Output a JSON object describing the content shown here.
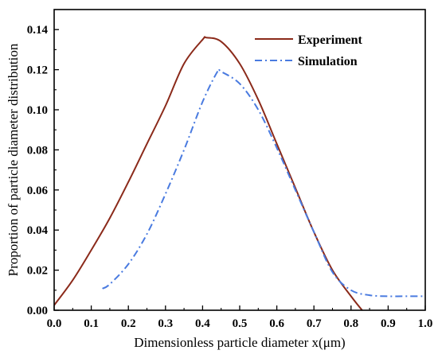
{
  "chart_data": {
    "type": "line",
    "xlabel": "Dimensionless particle diameter x(μm)",
    "ylabel": "Proportion of particle diameter distribution",
    "xlim": [
      0.0,
      1.0
    ],
    "ylim": [
      0.0,
      0.15
    ],
    "xticks": [
      "0.0",
      "0.1",
      "0.2",
      "0.3",
      "0.4",
      "0.5",
      "0.6",
      "0.7",
      "0.8",
      "0.9",
      "1.0"
    ],
    "yticks": [
      "0.00",
      "0.02",
      "0.04",
      "0.06",
      "0.08",
      "0.10",
      "0.12",
      "0.14"
    ],
    "legend_position": "top-right",
    "grid": false,
    "series": [
      {
        "name": "Experiment",
        "color": "#8B2A1A",
        "style": "solid",
        "x": [
          0.0,
          0.05,
          0.1,
          0.15,
          0.2,
          0.25,
          0.3,
          0.35,
          0.4,
          0.41,
          0.45,
          0.5,
          0.55,
          0.6,
          0.65,
          0.7,
          0.75,
          0.8,
          0.83
        ],
        "y": [
          0.0025,
          0.015,
          0.03,
          0.046,
          0.064,
          0.083,
          0.102,
          0.123,
          0.135,
          0.136,
          0.134,
          0.123,
          0.105,
          0.083,
          0.061,
          0.039,
          0.02,
          0.007,
          0.0
        ]
      },
      {
        "name": "Simulation",
        "color": "#4A7BE0",
        "style": "dashdot",
        "x": [
          0.13,
          0.15,
          0.2,
          0.25,
          0.3,
          0.35,
          0.4,
          0.44,
          0.45,
          0.5,
          0.55,
          0.6,
          0.65,
          0.7,
          0.75,
          0.8,
          0.85,
          0.9,
          0.95,
          1.0
        ],
        "y": [
          0.0108,
          0.013,
          0.023,
          0.038,
          0.058,
          0.08,
          0.104,
          0.119,
          0.119,
          0.113,
          0.1,
          0.081,
          0.06,
          0.039,
          0.019,
          0.01,
          0.0075,
          0.007,
          0.007,
          0.007
        ]
      }
    ]
  }
}
